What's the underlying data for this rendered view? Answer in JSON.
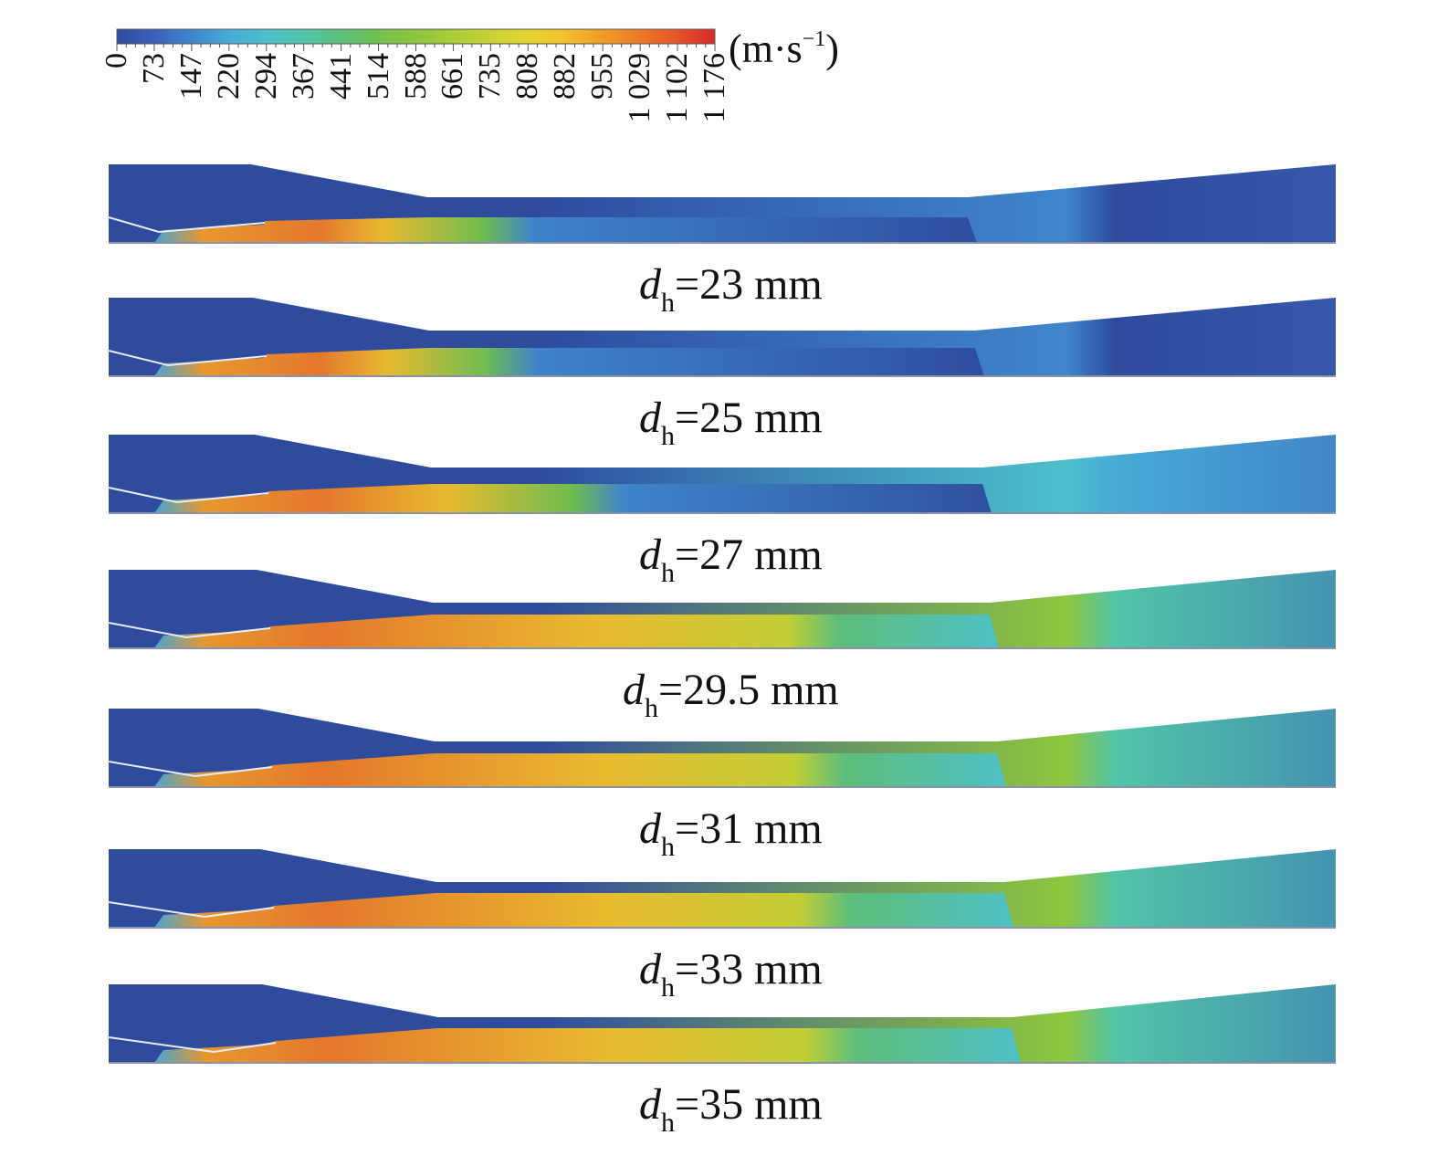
{
  "colorbar": {
    "unit_base": "(m·s",
    "unit_exp": "−1",
    "unit_close": ")",
    "ticks": [
      "0",
      "73",
      "147",
      "220",
      "294",
      "367",
      "441",
      "514",
      "588",
      "661",
      "735",
      "808",
      "882",
      "955",
      "1 029",
      "1 102",
      "1 176"
    ],
    "colors": [
      "#2f4b9e",
      "#3a62b8",
      "#3f86cc",
      "#48aad6",
      "#4cc0cc",
      "#52c4a8",
      "#5dc07c",
      "#72c24c",
      "#8ec63e",
      "#abcc38",
      "#c8d232",
      "#e3d52c",
      "#f2c02a",
      "#f19b28",
      "#ee7a27",
      "#e6522a",
      "#d7292c"
    ]
  },
  "panels": [
    {
      "caption_var": "d",
      "caption_sub": "h",
      "caption_value": "=23 mm",
      "jet_level": 0.1
    },
    {
      "caption_var": "d",
      "caption_sub": "h",
      "caption_value": "=25 mm",
      "jet_level": 0.25
    },
    {
      "caption_var": "d",
      "caption_sub": "h",
      "caption_value": "=27 mm",
      "jet_level": 0.35
    },
    {
      "caption_var": "d",
      "caption_sub": "h",
      "caption_value": "=29.5 mm",
      "jet_level": 0.6
    },
    {
      "caption_var": "d",
      "caption_sub": "h",
      "caption_value": "=31 mm",
      "jet_level": 0.62
    },
    {
      "caption_var": "d",
      "caption_sub": "h",
      "caption_value": "=33 mm",
      "jet_level": 0.66
    },
    {
      "caption_var": "d",
      "caption_sub": "h",
      "caption_value": "=35 mm",
      "jet_level": 0.68
    }
  ]
}
